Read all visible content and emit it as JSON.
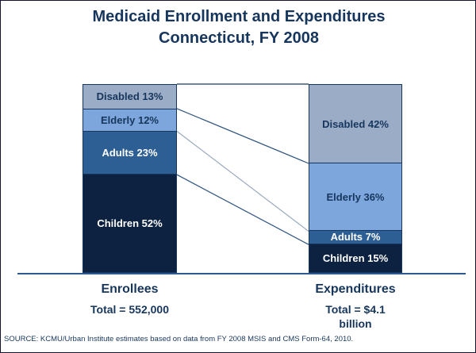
{
  "title": {
    "line1": "Medicaid Enrollment and Expenditures",
    "line2": "Connecticut, FY 2008"
  },
  "chart_data": {
    "type": "bar",
    "subtype": "100%-stacked-column-with-connectors",
    "title": "Medicaid Enrollment and Expenditures Connecticut, FY 2008",
    "categories": [
      "Enrollees",
      "Expenditures"
    ],
    "series": [
      {
        "name": "Disabled",
        "values_pct": [
          13,
          42
        ],
        "color": "#9badc6"
      },
      {
        "name": "Elderly",
        "values_pct": [
          12,
          36
        ],
        "color": "#7ca6dc"
      },
      {
        "name": "Adults",
        "values_pct": [
          23,
          7
        ],
        "color": "#2d5f94"
      },
      {
        "name": "Children",
        "values_pct": [
          52,
          15
        ],
        "color": "#0d2240"
      }
    ],
    "totals": {
      "Enrollees": "552,000",
      "Expenditures": "$4.1 billion"
    },
    "ylim": [
      0,
      100
    ],
    "grid": false,
    "legend": "none (labels inside segments)",
    "axis": "single bottom baseline"
  },
  "bars": {
    "left": {
      "name_label": "Enrollees",
      "total_label": "Total = 552,000",
      "segments": [
        {
          "label": "Disabled 13%",
          "pct": 13,
          "bg": "#9badc6",
          "fg": "#17365d"
        },
        {
          "label": "Elderly 12%",
          "pct": 12,
          "bg": "#7ca6dc",
          "fg": "#17365d"
        },
        {
          "label": "Adults 23%",
          "pct": 23,
          "bg": "#2d5f94",
          "fg": "#ffffff"
        },
        {
          "label": "Children 52%",
          "pct": 52,
          "bg": "#0d2240",
          "fg": "#ffffff"
        }
      ]
    },
    "right": {
      "name_label": "Expenditures",
      "total_label": "Total = $4.1 billion",
      "segments": [
        {
          "label": "Disabled 42%",
          "pct": 42,
          "bg": "#9badc6",
          "fg": "#17365d"
        },
        {
          "label": "Elderly 36%",
          "pct": 36,
          "bg": "#7ca6dc",
          "fg": "#17365d"
        },
        {
          "label": "Adults 7%",
          "pct": 7,
          "bg": "#2d5f94",
          "fg": "#ffffff"
        },
        {
          "label": "Children 15%",
          "pct": 15,
          "bg": "#0d2240",
          "fg": "#ffffff"
        }
      ]
    }
  },
  "connectors": [
    {
      "left_pct": 0,
      "right_pct": 0,
      "color": "#17375e"
    },
    {
      "left_pct": 13,
      "right_pct": 42,
      "color": "#2e5380"
    },
    {
      "left_pct": 25,
      "right_pct": 78,
      "color": "#9aa9be"
    },
    {
      "left_pct": 48,
      "right_pct": 85,
      "color": "#2e5380"
    }
  ],
  "colors": {
    "title_text": "#17365d",
    "axis_line": "#2e5b8f",
    "frame_border": "#141432",
    "segment_border": "#17365e"
  },
  "source": "SOURCE:  KCMU/Urban Institute estimates based on data from FY 2008 MSIS and CMS Form-64, 2010."
}
